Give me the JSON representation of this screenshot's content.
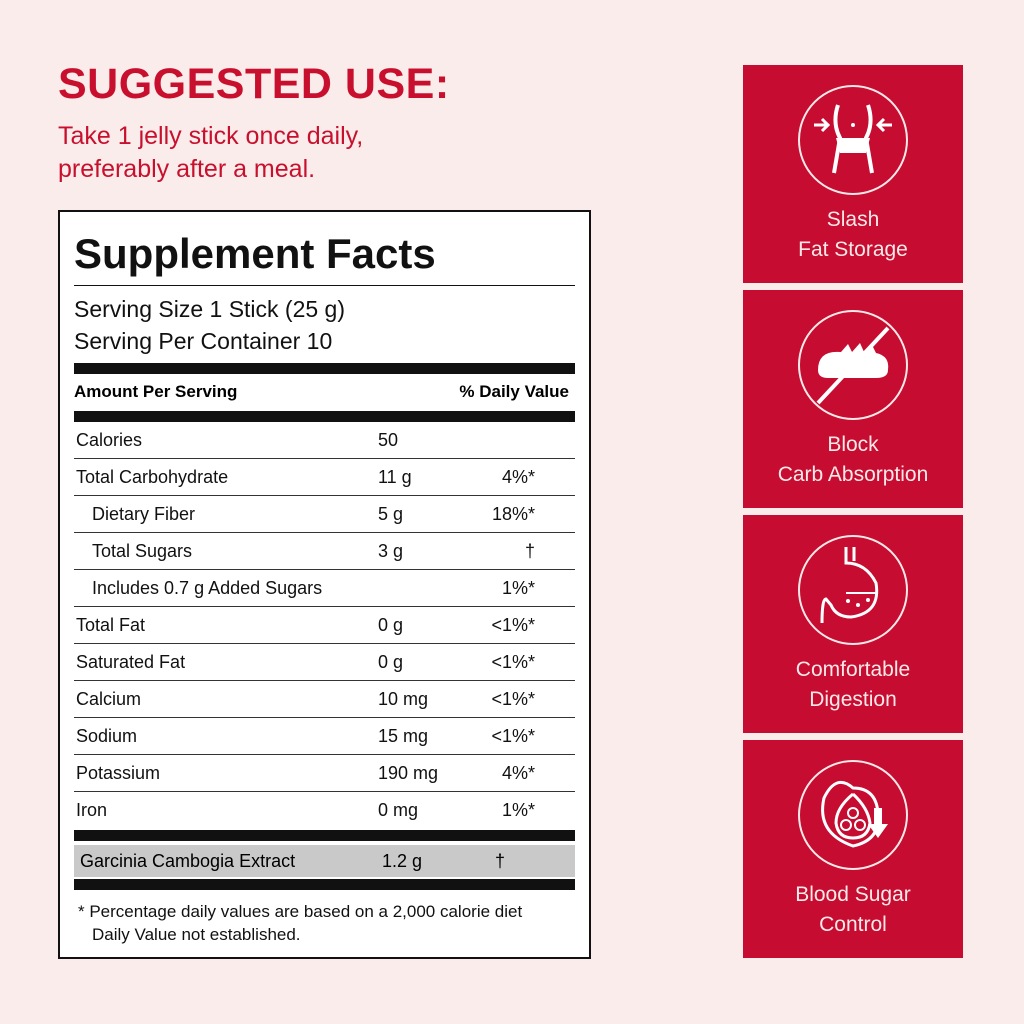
{
  "header": {
    "title": "SUGGESTED USE:",
    "lines": [
      "Take 1 jelly stick once daily,",
      "preferably after a meal."
    ]
  },
  "facts": {
    "title": "Supplement Facts",
    "serving_size": "Serving Size 1 Stick (25 g)",
    "servings": "Serving Per Container 10",
    "amount_header": "Amount Per Serving",
    "dv_header": "% Daily Value",
    "rows": [
      {
        "name": "Calories",
        "amount": "50",
        "dv": ""
      },
      {
        "name": "Total Carbohydrate",
        "amount": "11 g",
        "dv": "4%*"
      },
      {
        "name": "Dietary Fiber",
        "amount": "5 g",
        "dv": "18%*"
      },
      {
        "name": "Total Sugars",
        "amount": "3 g",
        "dv": "†"
      },
      {
        "name": "Includes 0.7 g Added Sugars",
        "amount": "",
        "dv": "1%*"
      },
      {
        "name": "Total Fat",
        "amount": "0 g",
        "dv": "<1%*"
      },
      {
        "name": "Saturated Fat",
        "amount": "0 g",
        "dv": "<1%*"
      },
      {
        "name": "Calcium",
        "amount": "10 mg",
        "dv": "<1%*"
      },
      {
        "name": "Sodium",
        "amount": "15 mg",
        "dv": "<1%*"
      },
      {
        "name": "Potassium",
        "amount": "190 mg",
        "dv": "4%*"
      },
      {
        "name": "Iron",
        "amount": "0 mg",
        "dv": "1%*"
      }
    ],
    "extract": {
      "name": "Garcinia Cambogia Extract",
      "amount": "1.2 g",
      "dv": "†"
    },
    "footnote": [
      "* Percentage daily values are based on a 2,000 calorie diet",
      "Daily Value not established."
    ]
  },
  "benefits": [
    {
      "icon": "waist-slim-icon",
      "lines": [
        "Slash",
        "Fat Storage"
      ]
    },
    {
      "icon": "no-bread-icon",
      "lines": [
        "Block",
        "Carb Absorption"
      ]
    },
    {
      "icon": "stomach-icon",
      "lines": [
        "Comfortable",
        "Digestion"
      ]
    },
    {
      "icon": "blood-sugar-icon",
      "lines": [
        "Blood Sugar",
        "Control"
      ]
    }
  ],
  "colors": {
    "accent": "#c60c30",
    "background": "#f9ecea"
  }
}
